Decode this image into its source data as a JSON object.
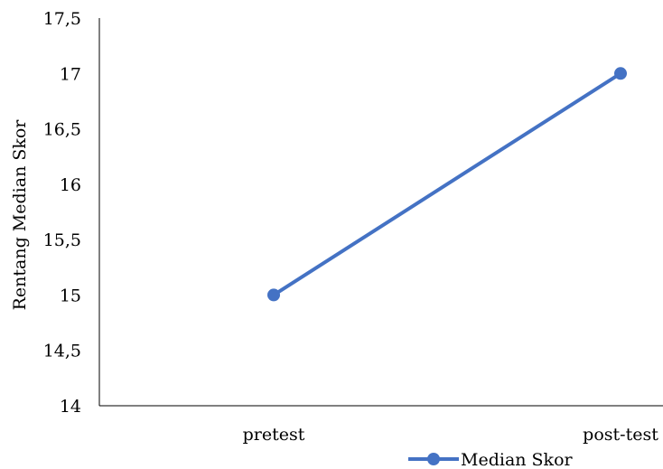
{
  "chart_data": {
    "type": "line",
    "title": "",
    "xlabel": "",
    "ylabel": "Rentang Median Skor",
    "categories": [
      "pretest",
      "post-test"
    ],
    "series": [
      {
        "name": "Median Skor",
        "values": [
          15,
          17
        ],
        "color": "#4472C4"
      }
    ],
    "ylim": [
      14,
      17.5
    ],
    "yticks": [
      14,
      14.5,
      15,
      15.5,
      16,
      16.5,
      17,
      17.5
    ],
    "ytick_labels": [
      "14",
      "14,5",
      "15",
      "15,5",
      "16",
      "16,5",
      "17",
      "17,5"
    ],
    "grid": false,
    "legend_position": "bottom-right"
  }
}
